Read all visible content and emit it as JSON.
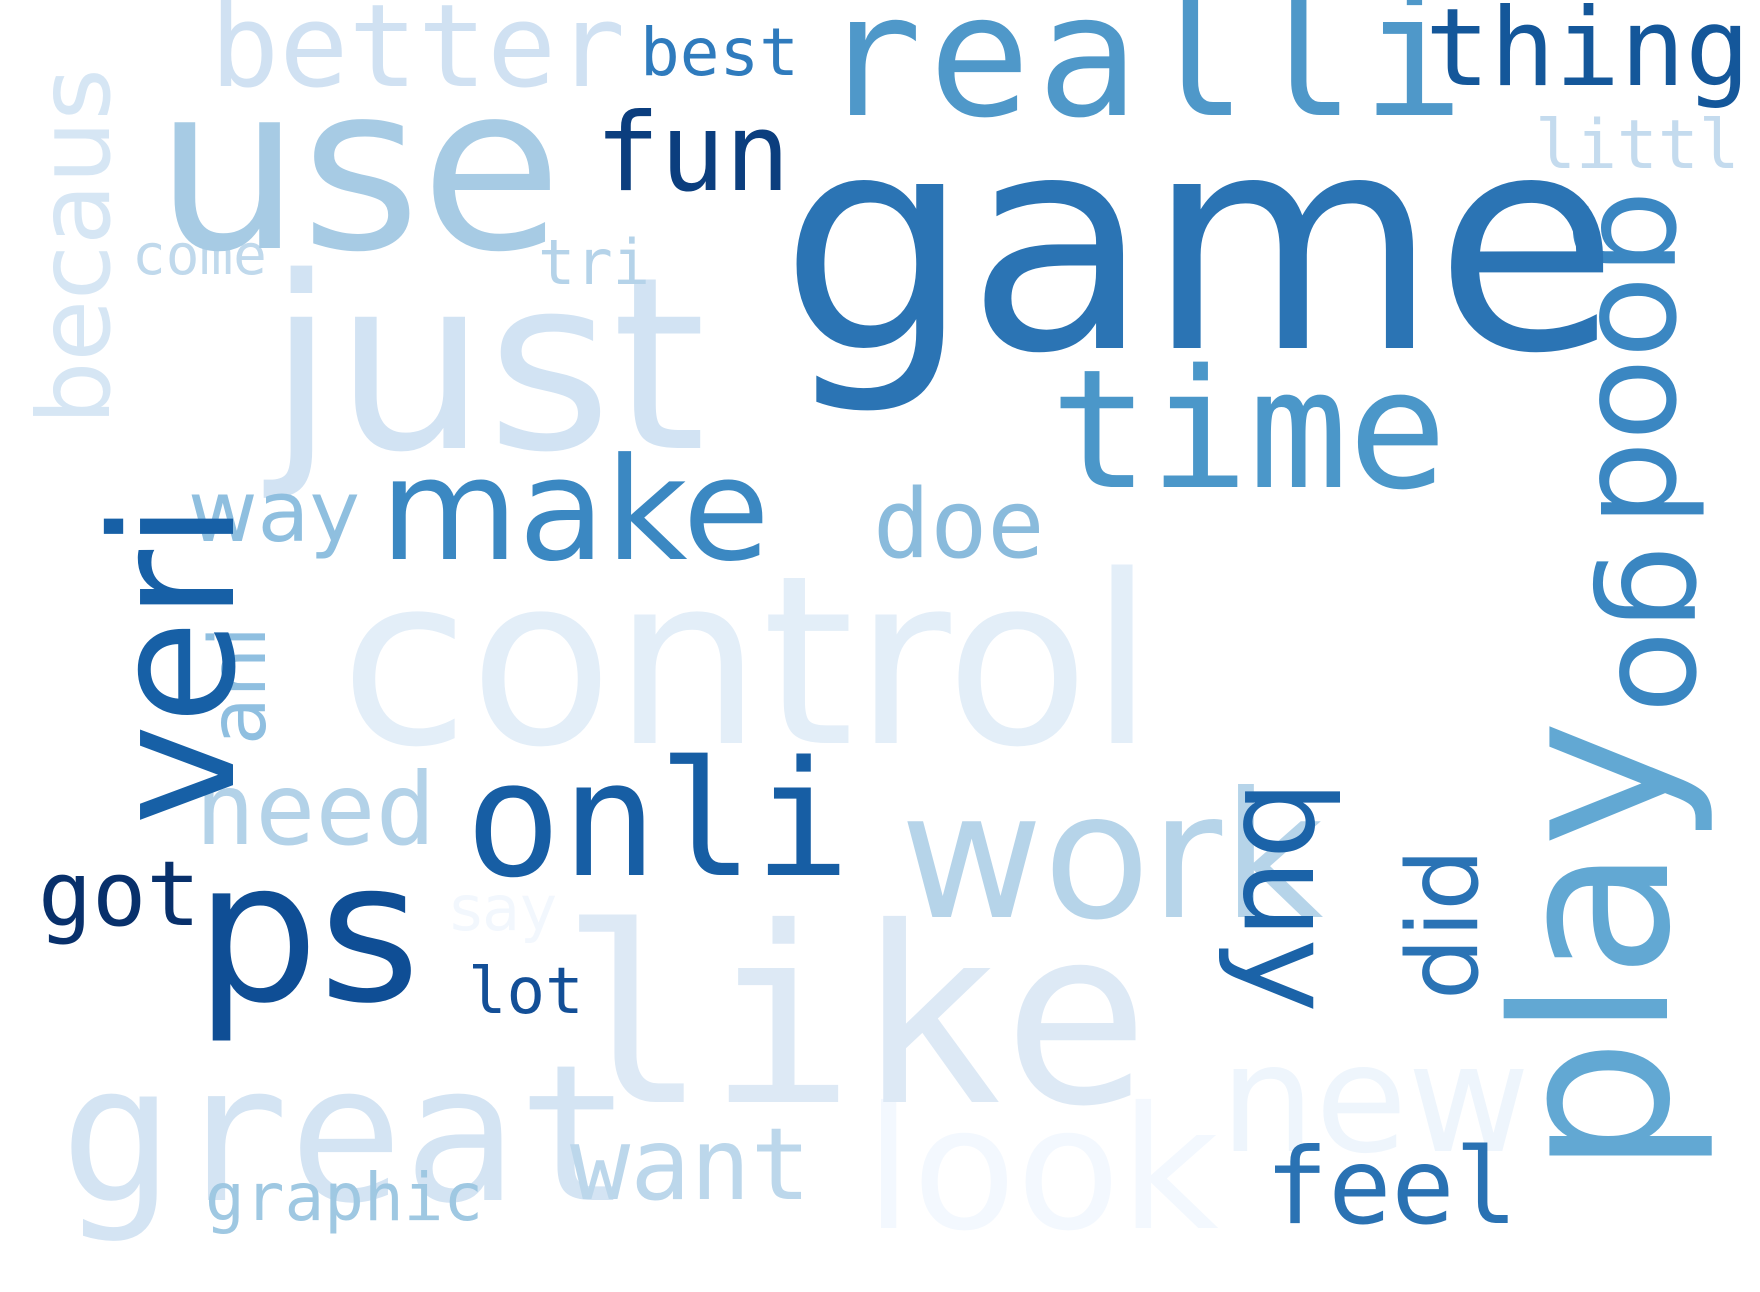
{
  "words": {
    "game": {
      "text": "game",
      "color": "#2b74b4"
    },
    "reall": {
      "text": "realli",
      "color": "#4f98c9"
    },
    "thing": {
      "text": "thing",
      "color": "#14579a"
    },
    "littl": {
      "text": "littl",
      "color": "#c4dbee"
    },
    "use": {
      "text": "use",
      "color": "#a7cbe4"
    },
    "better": {
      "text": "better",
      "color": "#d0e1f2"
    },
    "best": {
      "text": "best",
      "color": "#2f7bbd"
    },
    "fun": {
      "text": "fun",
      "color": "#0b3e7e"
    },
    "come": {
      "text": "come",
      "color": "#c0d9ec"
    },
    "tri": {
      "text": "tri",
      "color": "#b5d3e9"
    },
    "just": {
      "text": "just",
      "color": "#d2e3f3"
    },
    "time": {
      "text": "time",
      "color": "#4b97c9"
    },
    "make": {
      "text": "make",
      "color": "#3b88c2"
    },
    "way": {
      "text": "way",
      "color": "#8fbfdf"
    },
    "doe": {
      "text": "doe",
      "color": "#8abbdc"
    },
    "control": {
      "text": "control",
      "color": "#e3eef8"
    },
    "onli": {
      "text": "onli",
      "color": "#175ea4"
    },
    "need": {
      "text": "need",
      "color": "#b3d2e8"
    },
    "work": {
      "text": "work",
      "color": "#b6d4e9"
    },
    "got": {
      "text": "got",
      "color": "#08306b"
    },
    "ps": {
      "text": "ps",
      "color": "#0f4e95"
    },
    "say": {
      "text": "say",
      "color": "#f2f7fd"
    },
    "lot": {
      "text": "lot",
      "color": "#134f97"
    },
    "like": {
      "text": "like",
      "color": "#dde9f5"
    },
    "great": {
      "text": "great",
      "color": "#d4e4f3"
    },
    "new": {
      "text": "new",
      "color": "#eef5fc"
    },
    "want": {
      "text": "want",
      "color": "#bcd7eb"
    },
    "look": {
      "text": "look",
      "color": "#f3f8fe"
    },
    "feel": {
      "text": "feel",
      "color": "#2a72b3"
    },
    "graphic": {
      "text": "graphic",
      "color": "#9fc8e2"
    },
    "becaus": {
      "text": "becaus",
      "color": "#d6e6f4"
    },
    "veri": {
      "text": "veri",
      "color": "#1760a6"
    },
    "ani": {
      "text": "ani",
      "color": "#8fbfe0"
    },
    "buy": {
      "text": "buy",
      "color": "#1b63a8"
    },
    "did": {
      "text": "did",
      "color": "#2a73b5"
    },
    "good": {
      "text": "good",
      "color": "#3b87c2"
    },
    "go": {
      "text": "go",
      "color": "#3a86c1"
    },
    "play": {
      "text": "play",
      "color": "#62a8d3"
    }
  }
}
